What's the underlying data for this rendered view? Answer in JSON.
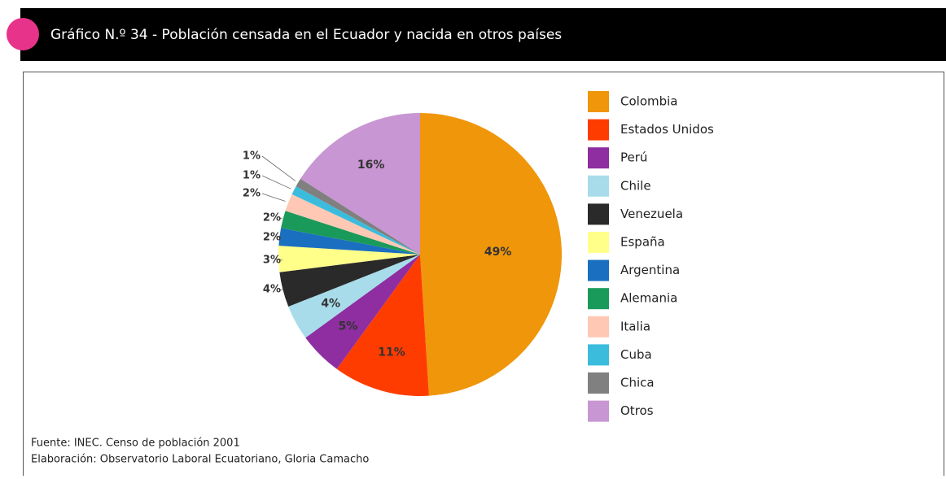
{
  "chart_data": {
    "type": "pie",
    "title": "Gráfico N.º 34 - Población censada en el Ecuador y nacida en otros países",
    "categories": [
      "Colombia",
      "Estados Unidos",
      "Perú",
      "Chile",
      "Venezuela",
      "España",
      "Argentina",
      "Alemania",
      "Italia",
      "Cuba",
      "Chica",
      "Otros"
    ],
    "values": [
      49,
      11,
      5,
      4,
      4,
      3,
      2,
      2,
      2,
      1,
      1,
      16
    ],
    "value_labels": [
      "49%",
      "11%",
      "5%",
      "4%",
      "4%",
      "3%",
      "2%",
      "2%",
      "2%",
      "1%",
      "1%",
      "16%"
    ],
    "colors": [
      "#f0960a",
      "#ff3c00",
      "#8e2ea0",
      "#a8dcea",
      "#2a2a2a",
      "#ffff8a",
      "#1a6fc0",
      "#1a9a5a",
      "#ffc8b4",
      "#3cbcdc",
      "#808080",
      "#c896d2"
    ],
    "source": [
      "Fuente: INEC. Censo de población 2001",
      "Elaboración: Observatorio Laboral Ecuatoriano,  Gloria Camacho"
    ]
  }
}
